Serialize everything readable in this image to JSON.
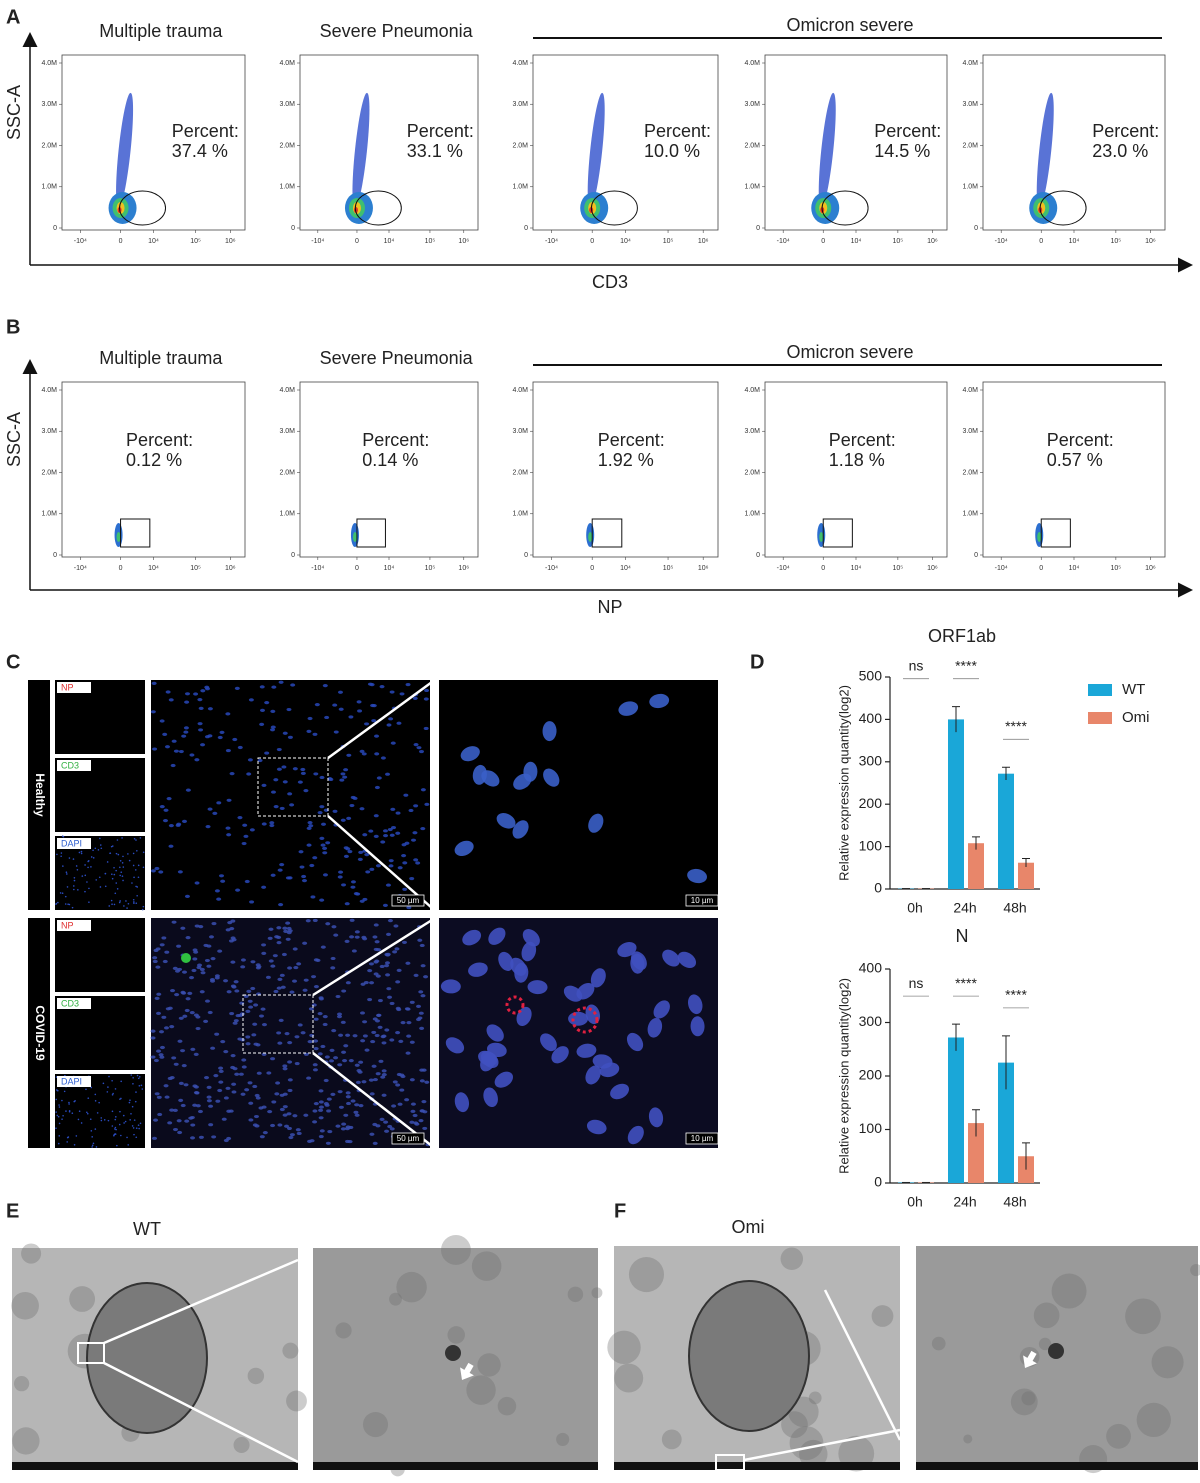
{
  "panel_labels": {
    "a": "A",
    "b": "B",
    "c": "C",
    "d": "D",
    "e": "E",
    "f": "F"
  },
  "flow": {
    "y_ticks": [
      "0",
      "1.0M",
      "2.0M",
      "3.0M",
      "4.0M"
    ],
    "x_ticks": [
      "-10⁴",
      "0",
      "10⁴",
      "10⁵",
      "10⁶"
    ]
  },
  "panel_a": {
    "y_label": "SSC-A",
    "x_label": "CD3",
    "group_label": "Omicron severe",
    "plots": [
      {
        "title": "Multiple trauma",
        "percent_label": "Percent:",
        "percent": "37.4 %"
      },
      {
        "title": "Severe Pneumonia",
        "percent_label": "Percent:",
        "percent": "33.1 %"
      },
      {
        "percent_label": "Percent:",
        "percent": "10.0 %"
      },
      {
        "percent_label": "Percent:",
        "percent": "14.5 %"
      },
      {
        "percent_label": "Percent:",
        "percent": "23.0 %"
      }
    ]
  },
  "panel_b": {
    "y_label": "SSC-A",
    "x_label": "NP",
    "group_label": "Omicron severe",
    "plots": [
      {
        "title": "Multiple trauma",
        "percent_label": "Percent:",
        "percent": "0.12 %"
      },
      {
        "title": "Severe Pneumonia",
        "percent_label": "Percent:",
        "percent": "0.14 %"
      },
      {
        "percent_label": "Percent:",
        "percent": "1.92 %"
      },
      {
        "percent_label": "Percent:",
        "percent": "1.18 %"
      },
      {
        "percent_label": "Percent:",
        "percent": "0.57 %"
      }
    ]
  },
  "panel_c": {
    "rows": [
      {
        "label": "Healthy"
      },
      {
        "label": "COVID-19"
      }
    ],
    "channels": [
      "NP",
      "CD3",
      "DAPI"
    ],
    "scale_bars": [
      "50 µm",
      "10 µm"
    ]
  },
  "chart_data": [
    {
      "type": "bar",
      "title": "ORF1ab",
      "y_label": "Relative expression quantity(log2)",
      "categories": [
        "0h",
        "24h",
        "48h"
      ],
      "series": [
        {
          "name": "WT",
          "color": "#1aa7d8",
          "values": [
            1,
            400,
            272
          ],
          "errors": [
            0,
            30,
            15
          ]
        },
        {
          "name": "Omi",
          "color": "#e8866a",
          "values": [
            1,
            108,
            62
          ],
          "errors": [
            0,
            15,
            10
          ]
        }
      ],
      "significance": [
        "ns",
        "****",
        "****"
      ],
      "ylim": [
        0,
        500
      ],
      "yticks": [
        0,
        100,
        200,
        300,
        400,
        500
      ]
    },
    {
      "type": "bar",
      "title": "N",
      "y_label": "Relative expression quantity(log2)",
      "categories": [
        "0h",
        "24h",
        "48h"
      ],
      "series": [
        {
          "color": "#1aa7d8",
          "values": [
            1,
            272,
            225
          ],
          "errors": [
            0,
            25,
            50
          ]
        },
        {
          "color": "#e8866a",
          "values": [
            1,
            112,
            50
          ],
          "errors": [
            0,
            25,
            25
          ]
        }
      ],
      "significance": [
        "ns",
        "****",
        "****"
      ],
      "ylim": [
        0,
        400
      ],
      "yticks": [
        0,
        100,
        200,
        300,
        400
      ]
    }
  ],
  "panel_e": {
    "title": "WT"
  },
  "panel_f": {
    "title": "Omi"
  }
}
